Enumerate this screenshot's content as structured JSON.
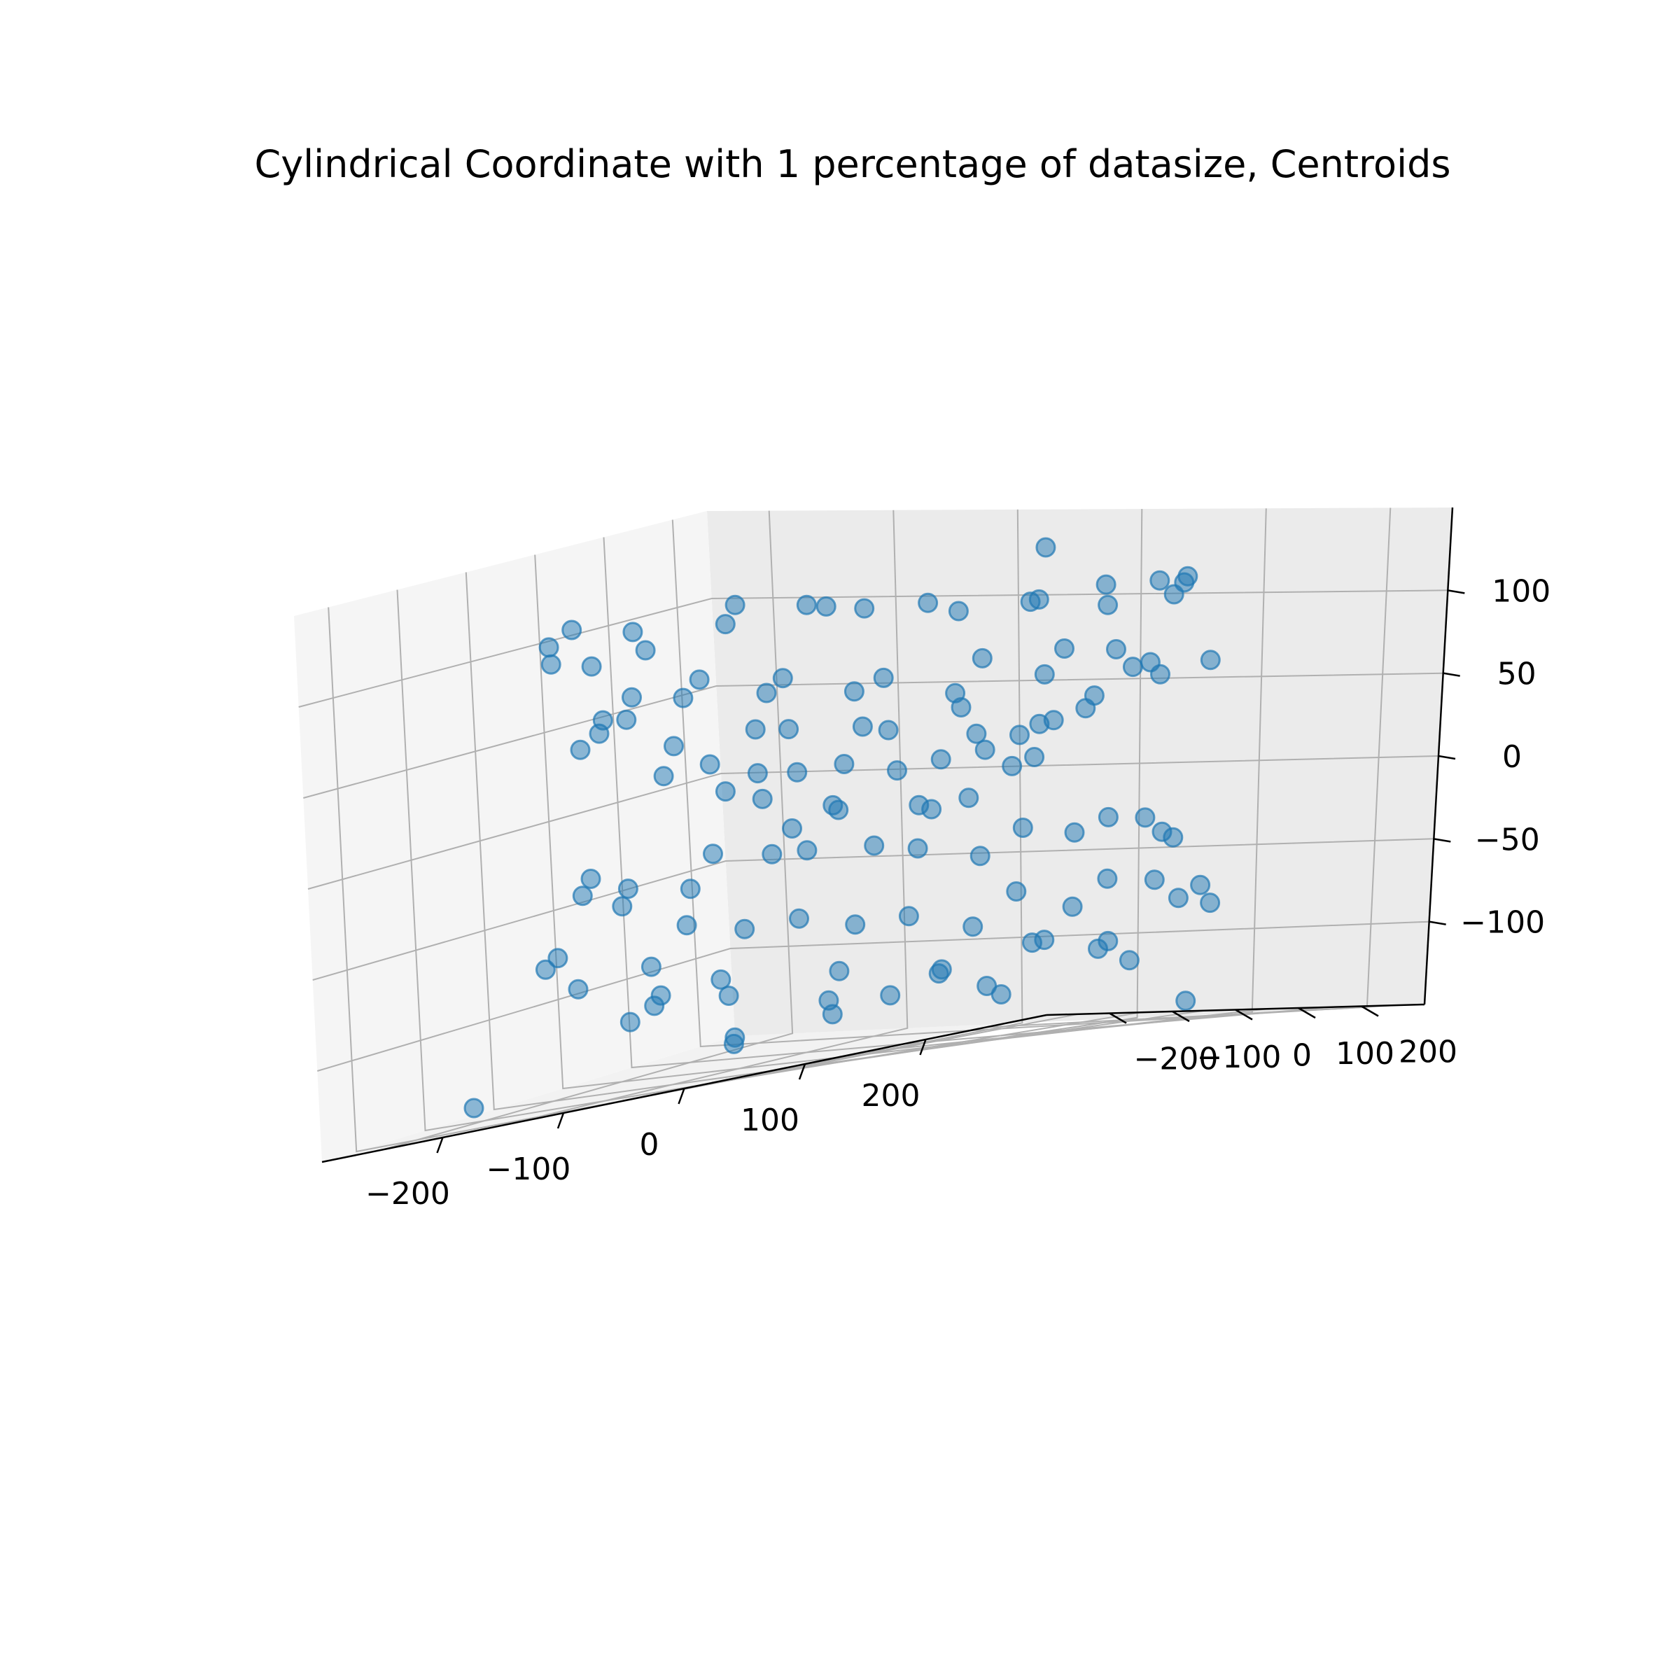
{
  "chart_data": {
    "type": "scatter3d",
    "title": "Cylindrical Coordinate with 1 percentage of datasize, Centroids",
    "xlabel": "",
    "ylabel": "",
    "zlabel": "",
    "xlim": [
      -300,
      300
    ],
    "ylim": [
      -300,
      300
    ],
    "zlim": [
      -150,
      150
    ],
    "x_ticks": [
      -200,
      -100,
      0,
      100,
      200
    ],
    "y_ticks": [
      -200,
      -100,
      0,
      100,
      200
    ],
    "z_ticks": [
      -100,
      -50,
      0,
      50,
      100
    ],
    "x_tick_labels": [
      "−200",
      "−100",
      "0",
      "100",
      "200"
    ],
    "y_tick_labels": [
      "−200",
      "−100",
      "0",
      "100",
      "200"
    ],
    "z_tick_labels": [
      "−100",
      "−50",
      "0",
      "50",
      "100"
    ],
    "grid": true,
    "marker_color": "#1f77b4",
    "marker_alpha": 0.5,
    "series": [
      {
        "values_note": "",
        "points": [
          [
            -180,
            120,
            110
          ],
          [
            -150,
            170,
            105
          ],
          [
            -120,
            200,
            100
          ],
          [
            -60,
            230,
            95
          ],
          [
            0,
            240,
            100
          ],
          [
            60,
            230,
            108
          ],
          [
            120,
            200,
            110
          ],
          [
            170,
            150,
            112
          ],
          [
            200,
            90,
            108
          ],
          [
            230,
            20,
            100
          ],
          [
            220,
            -60,
            95
          ],
          [
            190,
            -120,
            100
          ],
          [
            140,
            -180,
            105
          ],
          [
            80,
            -220,
            110
          ],
          [
            10,
            -240,
            108
          ],
          [
            -60,
            -230,
            100
          ],
          [
            -120,
            -200,
            95
          ],
          [
            -180,
            -150,
            98
          ],
          [
            -220,
            -80,
            105
          ],
          [
            -240,
            -10,
            110
          ],
          [
            -230,
            60,
            102
          ],
          [
            -200,
            100,
            70
          ],
          [
            -160,
            150,
            65
          ],
          [
            -100,
            190,
            60
          ],
          [
            -30,
            210,
            68
          ],
          [
            40,
            205,
            72
          ],
          [
            110,
            180,
            60
          ],
          [
            160,
            130,
            55
          ],
          [
            190,
            60,
            62
          ],
          [
            200,
            -10,
            70
          ],
          [
            180,
            -80,
            58
          ],
          [
            140,
            -140,
            52
          ],
          [
            80,
            -180,
            60
          ],
          [
            20,
            -200,
            66
          ],
          [
            -50,
            -195,
            70
          ],
          [
            -110,
            -170,
            62
          ],
          [
            -160,
            -120,
            55
          ],
          [
            -190,
            -60,
            60
          ],
          [
            -205,
            10,
            68
          ],
          [
            -150,
            90,
            40
          ],
          [
            -90,
            140,
            35
          ],
          [
            -20,
            160,
            42
          ],
          [
            50,
            150,
            30
          ],
          [
            110,
            110,
            38
          ],
          [
            150,
            50,
            45
          ],
          [
            155,
            -20,
            32
          ],
          [
            130,
            -90,
            28
          ],
          [
            80,
            -130,
            36
          ],
          [
            10,
            -150,
            44
          ],
          [
            -60,
            -140,
            30
          ],
          [
            -120,
            -100,
            26
          ],
          [
            -150,
            -30,
            40
          ],
          [
            -100,
            60,
            15
          ],
          [
            -40,
            100,
            10
          ],
          [
            30,
            105,
            18
          ],
          [
            90,
            70,
            12
          ],
          [
            110,
            0,
            8
          ],
          [
            90,
            -70,
            16
          ],
          [
            30,
            -105,
            20
          ],
          [
            -40,
            -100,
            6
          ],
          [
            -95,
            -55,
            12
          ],
          [
            -110,
            20,
            18
          ],
          [
            -60,
            40,
            -5
          ],
          [
            0,
            60,
            -10
          ],
          [
            55,
            35,
            -8
          ],
          [
            60,
            -30,
            -12
          ],
          [
            0,
            -60,
            -6
          ],
          [
            -55,
            -30,
            -14
          ],
          [
            -200,
            110,
            -30
          ],
          [
            -150,
            160,
            -35
          ],
          [
            -80,
            200,
            -40
          ],
          [
            0,
            215,
            -32
          ],
          [
            80,
            200,
            -28
          ],
          [
            150,
            155,
            -38
          ],
          [
            195,
            90,
            -42
          ],
          [
            215,
            10,
            -30
          ],
          [
            200,
            -70,
            -36
          ],
          [
            160,
            -140,
            -44
          ],
          [
            100,
            -190,
            -30
          ],
          [
            30,
            -215,
            -26
          ],
          [
            -40,
            -210,
            -38
          ],
          [
            -110,
            -185,
            -42
          ],
          [
            -170,
            -135,
            -34
          ],
          [
            -205,
            -60,
            -28
          ],
          [
            -220,
            20,
            -40
          ],
          [
            -230,
            120,
            -70
          ],
          [
            -170,
            180,
            -75
          ],
          [
            -100,
            220,
            -80
          ],
          [
            -20,
            240,
            -70
          ],
          [
            60,
            235,
            -65
          ],
          [
            140,
            200,
            -78
          ],
          [
            200,
            140,
            -82
          ],
          [
            235,
            60,
            -72
          ],
          [
            240,
            -20,
            -68
          ],
          [
            215,
            -100,
            -80
          ],
          [
            170,
            -170,
            -85
          ],
          [
            100,
            -220,
            -74
          ],
          [
            20,
            -240,
            -66
          ],
          [
            -60,
            -235,
            -78
          ],
          [
            -140,
            -200,
            -84
          ],
          [
            -200,
            -140,
            -72
          ],
          [
            -235,
            -60,
            -70
          ],
          [
            -180,
            80,
            -100
          ],
          [
            -120,
            150,
            -105
          ],
          [
            -50,
            180,
            -110
          ],
          [
            30,
            175,
            -98
          ],
          [
            100,
            150,
            -104
          ],
          [
            160,
            90,
            -112
          ],
          [
            180,
            20,
            -100
          ],
          [
            170,
            -60,
            -96
          ],
          [
            120,
            -130,
            -108
          ],
          [
            50,
            -170,
            -114
          ],
          [
            -30,
            -175,
            -102
          ],
          [
            -100,
            -150,
            -96
          ],
          [
            -160,
            -90,
            -110
          ],
          [
            -185,
            -10,
            -106
          ],
          [
            -60,
            120,
            -120
          ],
          [
            40,
            110,
            -125
          ],
          [
            100,
            -20,
            -118
          ],
          [
            20,
            -110,
            -122
          ],
          [
            -90,
            -60,
            -128
          ],
          [
            0,
            250,
            130
          ],
          [
            -260,
            30,
            40
          ],
          [
            250,
            40,
            60
          ],
          [
            20,
            -260,
            -130
          ],
          [
            120,
            250,
            -140
          ],
          [
            -230,
            -200,
            -140
          ],
          [
            230,
            -210,
            20
          ]
        ]
      }
    ]
  }
}
